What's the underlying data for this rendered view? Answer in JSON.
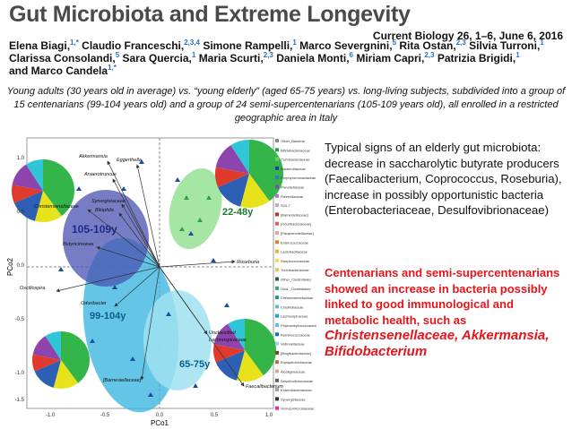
{
  "header": {
    "title": "Gut Microbiota and Extreme Longevity",
    "journal": "Current Biology 26, 1–6, June 6, 2016",
    "authors": [
      [
        {
          "name": "Elena Biagi,",
          "sup": "1,*"
        },
        {
          "name": "Claudio Franceschi,",
          "sup": "2,3,4"
        },
        {
          "name": "Simone Rampelli,",
          "sup": "1"
        },
        {
          "name": "Marco Severgnini,",
          "sup": "5"
        },
        {
          "name": "Rita Ostan,",
          "sup": "2,3"
        },
        {
          "name": "Silvia Turroni,",
          "sup": "1"
        }
      ],
      [
        {
          "name": "Clarissa Consolandi,",
          "sup": "5"
        },
        {
          "name": "Sara Quercia,",
          "sup": "1"
        },
        {
          "name": "Maria Scurti,",
          "sup": "2,3"
        },
        {
          "name": "Daniela Monti,",
          "sup": "6"
        },
        {
          "name": "Miriam Capri,",
          "sup": "2,3"
        },
        {
          "name": "Patrizia Brigidi,",
          "sup": "1"
        }
      ],
      [
        {
          "name": "and Marco Candela",
          "sup": "1,*"
        }
      ]
    ],
    "caption": "Young adults (30 years old in average) vs. “young elderly” (aged 65-75 years) vs. long-living subjects, subdivided into a group of 15 centenarians (99-104 years old) and a group of 24 semi-supercentenarians (105-109 years old), all enrolled in a restricted geographic area in Italy"
  },
  "figure": {
    "x_label": "PCo1",
    "y_label": "PCo2",
    "xticks": [
      "-1.0",
      "-0.5",
      "0.0",
      "0.5",
      "1.0"
    ],
    "yticks": [
      "1.0",
      "0.5",
      "0.0",
      "-0.5",
      "-1.0",
      "-1.5"
    ],
    "groups": [
      "105-109y",
      "99-104y",
      "22-48y",
      "65-75y"
    ],
    "taxa": [
      "Akkermansia",
      "Eggerthella",
      "Anaerotruncus",
      "Synergistaceae",
      "Bilophila",
      "Christensenellaceae",
      "Butyricimonas",
      "Oscillospira",
      "Odoribacter",
      "[Barnesiellaceae]",
      "Roseburia",
      "Unclassified",
      "Lachnospiraceae",
      "Faecalibacterium"
    ],
    "legend": [
      "Other_Bacteria",
      "Bifidobacteriaceae",
      "Coriobacteriaceae",
      "Bacteroidaceae",
      "Porphyromonadaceae",
      "Prevotellaceae",
      "Rikenellaceae",
      "S24-7",
      "[Barnesiellaceae]",
      "[Odoribacteraceae]",
      "[Paraprevotellaceae]",
      "Enterococcaceae",
      "Lactobacillaceae",
      "Streptococcaceae",
      "Turicibacteraceae",
      "Other_Clostridiales",
      "Unid._Clostridiales",
      "Christensenellaceae",
      "Clostridiaceae",
      "Lachnospiraceae",
      "Peptostreptococcaceae",
      "Ruminococcaceae",
      "Veillonellaceae",
      "[Mogibacteriaceae]",
      "Erysipelotrichaceae",
      "Alcaligenaceae",
      "Desulfovibrionaceae",
      "Enterobacteriaceae",
      "Synergistaceae",
      "Verrucomicrobiaceae"
    ]
  },
  "notes": {
    "signs": "Typical signs of an elderly gut microbiota: decrease in saccharolytic butyrate producers (Faecalibacterium, Coprococcus, Roseburia), increase in possibly opportunistic bacteria (Enterobacteriaceae, Desulfovibrionaceae)",
    "highlight": "Centenarians and semi-supercentenarians showed an increase in bacteria possibly linked to good immunological and metabolic health, such as",
    "taxa": "Christensenellaceae, Akkermansia, Bifidobacterium"
  }
}
